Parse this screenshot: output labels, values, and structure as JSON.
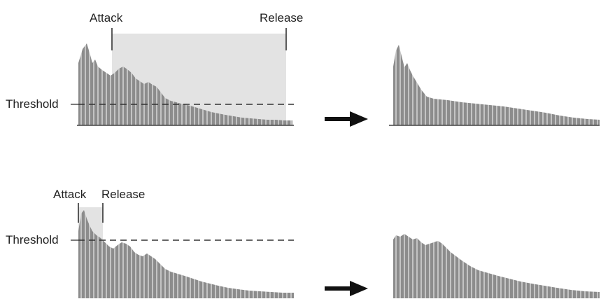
{
  "labels": {
    "threshold": "Threshold",
    "attack": "Attack",
    "release": "Release"
  },
  "colors": {
    "window": "#e3e3e3",
    "envelope": "#8c8c8c",
    "hatch": "#bfbfbf",
    "axis": "#444444",
    "threshold_line": "#333333",
    "arrow": "#111111"
  },
  "icons": {
    "arrow": "right-arrow-icon"
  },
  "examples": [
    {
      "name": "long-attack-release",
      "attack_release_window": "long",
      "result": "compressed-after-onset"
    },
    {
      "name": "short-attack-release",
      "attack_release_window": "short",
      "result": "compressed-peak"
    }
  ]
}
